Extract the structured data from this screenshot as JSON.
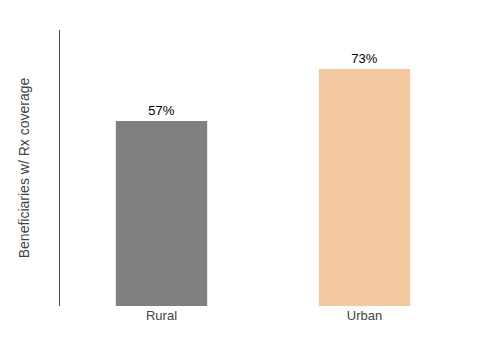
{
  "chart_data": {
    "type": "bar",
    "categories": [
      "Rural",
      "Urban"
    ],
    "values": [
      57,
      73
    ],
    "value_labels": [
      "57%",
      "73%"
    ],
    "colors": [
      "#808080",
      "#F4C9A0"
    ],
    "ylabel": "Beneficiaries w/ Rx coverage",
    "ylim": [
      0,
      85
    ],
    "grid": false,
    "data_labels": true,
    "tick_labels": "x"
  }
}
